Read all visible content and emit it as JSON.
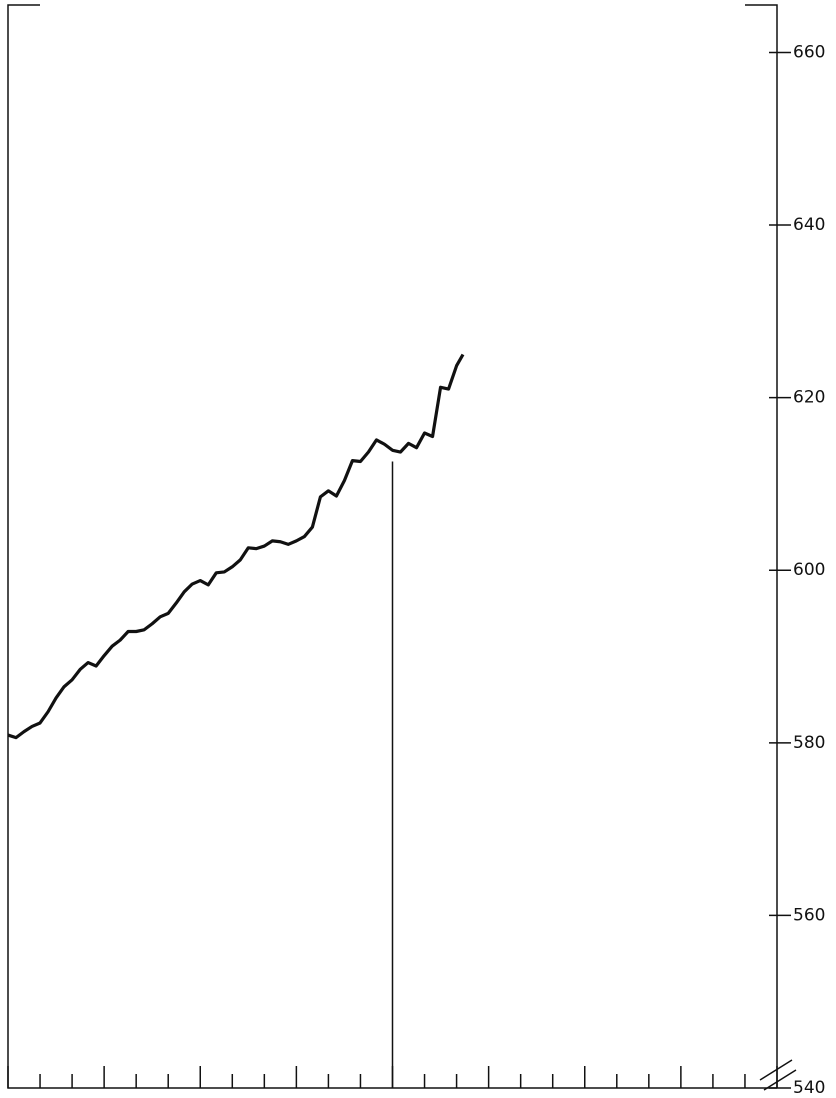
{
  "chart_data": {
    "type": "line",
    "x": [
      0,
      0.25,
      0.5,
      0.75,
      1,
      1.25,
      1.5,
      1.75,
      2,
      2.25,
      2.5,
      2.75,
      3,
      3.25,
      3.5,
      3.75,
      4,
      4.25,
      4.5,
      4.75,
      5,
      5.25,
      5.5,
      5.75,
      6,
      6.25,
      6.5,
      6.75,
      7,
      7.25,
      7.5,
      7.75,
      8,
      8.25,
      8.5,
      8.75,
      9,
      9.25,
      9.5,
      9.75,
      10,
      10.25,
      10.5,
      10.75,
      11,
      11.25,
      11.5,
      11.75,
      12,
      12.25,
      12.5,
      12.75,
      13,
      13.25,
      13.5,
      13.75,
      14,
      14.2
    ],
    "series": [
      {
        "color": "#111111",
        "values": [
          580.9,
          580.6,
          581.3,
          581.9,
          582.3,
          583.6,
          585.2,
          586.5,
          587.3,
          588.5,
          589.3,
          588.9,
          590.1,
          591.2,
          591.9,
          592.9,
          592.9,
          593.1,
          593.8,
          594.6,
          595.0,
          596.2,
          597.5,
          598.4,
          598.8,
          598.3,
          599.7,
          599.8,
          600.4,
          601.2,
          602.6,
          602.5,
          602.8,
          603.4,
          603.3,
          603.0,
          603.4,
          603.9,
          605.0,
          608.5,
          609.2,
          608.6,
          610.4,
          612.7,
          612.6,
          613.7,
          615.1,
          614.6,
          613.9,
          613.7,
          614.7,
          614.2,
          615.9,
          615.5,
          621.2,
          621.0,
          623.7,
          625.0
        ]
      }
    ],
    "reference_line": {
      "x": 12,
      "top": 612.6
    },
    "xlim": [
      0,
      24
    ],
    "xticks": [
      0,
      1,
      2,
      3,
      4,
      5,
      6,
      7,
      8,
      9,
      10,
      11,
      12,
      13,
      14,
      15,
      16,
      17,
      18,
      19,
      20,
      21,
      22,
      23,
      24
    ],
    "ylim": [
      540,
      665.5
    ],
    "yticks": [
      540,
      560,
      580,
      600,
      620,
      640,
      660
    ]
  }
}
